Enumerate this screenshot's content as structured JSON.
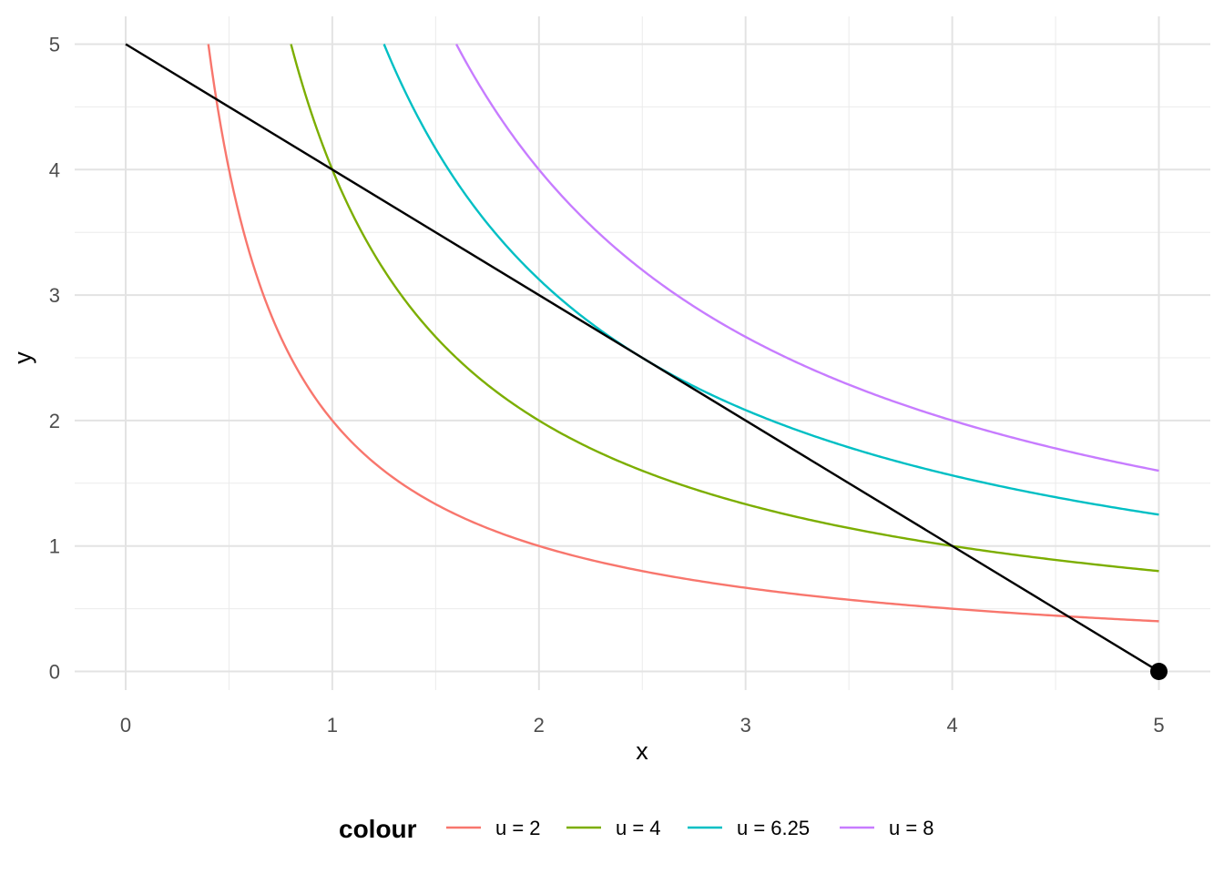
{
  "chart_data": {
    "type": "line",
    "xlabel": "x",
    "ylabel": "y",
    "xlim": [
      -0.25,
      5.25
    ],
    "ylim": [
      -0.18,
      5.0
    ],
    "x_ticks": [
      "0",
      "1",
      "2",
      "3",
      "4",
      "5"
    ],
    "y_ticks": [
      "0",
      "1",
      "2",
      "3",
      "4",
      "5"
    ],
    "grid": true,
    "legend_title": "colour",
    "legend_position": "bottom",
    "series": [
      {
        "name": "u = 2",
        "color": "#F8766D",
        "function": "y = u / x",
        "u": 2,
        "x_range": [
          0.4,
          5
        ]
      },
      {
        "name": "u = 4",
        "color": "#7CAE00",
        "function": "y = u / x",
        "u": 4,
        "x_range": [
          0.8,
          5
        ]
      },
      {
        "name": "u = 6.25",
        "color": "#00BFC4",
        "function": "y = u / x",
        "u": 6.25,
        "x_range": [
          1.25,
          5
        ]
      },
      {
        "name": "u = 8",
        "color": "#C77CFF",
        "function": "y = u / x",
        "u": 8,
        "x_range": [
          1.6,
          5
        ]
      }
    ],
    "budget_line": {
      "color": "#000000",
      "points": [
        [
          0,
          5
        ],
        [
          5,
          0
        ]
      ]
    },
    "marker_point": {
      "x": 5,
      "y": 0,
      "color": "#000000"
    }
  }
}
